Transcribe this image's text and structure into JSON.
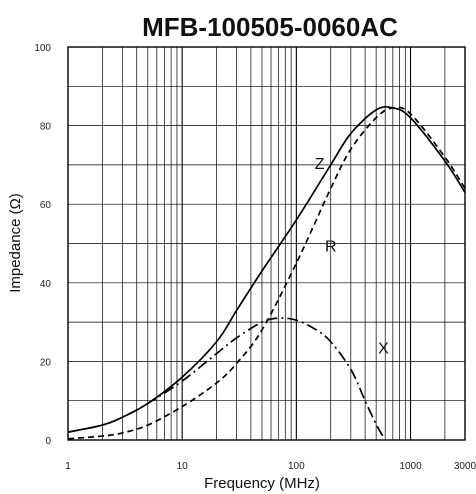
{
  "chart_data": {
    "type": "line",
    "title": "MFB-100505-0060AC",
    "xlabel": "Frequency (MHz)",
    "ylabel": "Impedance (Ω)",
    "x_scale": "log",
    "xlim": [
      1,
      3000
    ],
    "ylim": [
      0,
      100
    ],
    "grid": true,
    "x_tick_labels": [
      {
        "value": 1,
        "label": "1"
      },
      {
        "value": 10,
        "label": "10"
      },
      {
        "value": 100,
        "label": "100"
      },
      {
        "value": 1000,
        "label": "1000"
      },
      {
        "value": 3000,
        "label": "3000"
      }
    ],
    "y_tick_labels": [
      {
        "value": 0,
        "label": "0"
      },
      {
        "value": 20,
        "label": "20"
      },
      {
        "value": 40,
        "label": "40"
      },
      {
        "value": 60,
        "label": "60"
      },
      {
        "value": 80,
        "label": "80"
      },
      {
        "value": 100,
        "label": "100"
      }
    ],
    "series": [
      {
        "name": "Z",
        "style": "solid",
        "x": [
          1,
          2,
          3,
          5,
          10,
          20,
          30,
          50,
          100,
          200,
          300,
          500,
          700,
          1000,
          2000,
          3000
        ],
        "y": [
          2,
          3.8,
          5.8,
          9.3,
          16,
          25,
          33,
          43,
          56,
          70,
          78,
          84,
          84.5,
          82,
          71,
          63
        ]
      },
      {
        "name": "R",
        "style": "dashed",
        "x": [
          1,
          2,
          3,
          5,
          10,
          20,
          30,
          50,
          100,
          200,
          300,
          500,
          700,
          1000,
          2000,
          3000
        ],
        "y": [
          0.3,
          1,
          1.8,
          3.8,
          8.5,
          14.5,
          19.5,
          28,
          45,
          64,
          74,
          82,
          84.5,
          83,
          72,
          64
        ]
      },
      {
        "name": "X",
        "style": "dashdot",
        "x": [
          1,
          2,
          3,
          5,
          10,
          20,
          30,
          50,
          70,
          100,
          150,
          200,
          300,
          400,
          500,
          600
        ],
        "y": [
          2,
          3.8,
          5.8,
          9.3,
          15,
          22,
          26,
          30,
          31,
          30.5,
          28,
          25,
          18,
          10,
          4,
          0
        ]
      }
    ],
    "curve_labels": [
      {
        "text": "Z",
        "x": 160,
        "y": 69
      },
      {
        "text": "R",
        "x": 200,
        "y": 48
      },
      {
        "text": "X",
        "x": 580,
        "y": 22
      }
    ]
  }
}
